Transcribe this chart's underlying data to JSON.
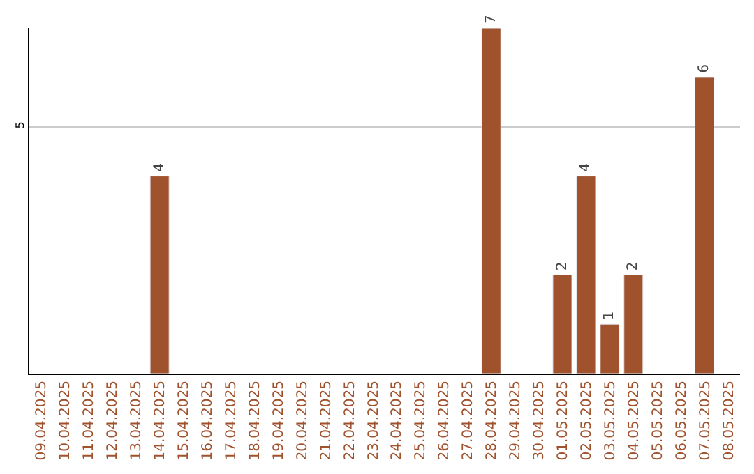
{
  "chart_data": {
    "type": "bar",
    "categories": [
      "09.04.2025",
      "10.04.2025",
      "11.04.2025",
      "12.04.2025",
      "13.04.2025",
      "14.04.2025",
      "15.04.2025",
      "16.04.2025",
      "17.04.2025",
      "18.04.2025",
      "19.04.2025",
      "20.04.2025",
      "21.04.2025",
      "22.04.2025",
      "23.04.2025",
      "24.04.2025",
      "25.04.2025",
      "26.04.2025",
      "27.04.2025",
      "28.04.2025",
      "29.04.2025",
      "30.04.2025",
      "01.05.2025",
      "02.05.2025",
      "03.05.2025",
      "04.05.2025",
      "05.05.2025",
      "06.05.2025",
      "07.05.2025",
      "08.05.2025"
    ],
    "values": [
      null,
      null,
      null,
      null,
      null,
      4,
      null,
      null,
      null,
      null,
      null,
      null,
      null,
      null,
      null,
      null,
      null,
      null,
      null,
      7,
      null,
      null,
      2,
      4,
      1,
      2,
      null,
      null,
      6,
      null
    ],
    "color": "#a0522d",
    "ylim": [
      0,
      7
    ],
    "yticks": [
      5
    ],
    "grid": "y",
    "data_labels": true,
    "legend": false
  }
}
